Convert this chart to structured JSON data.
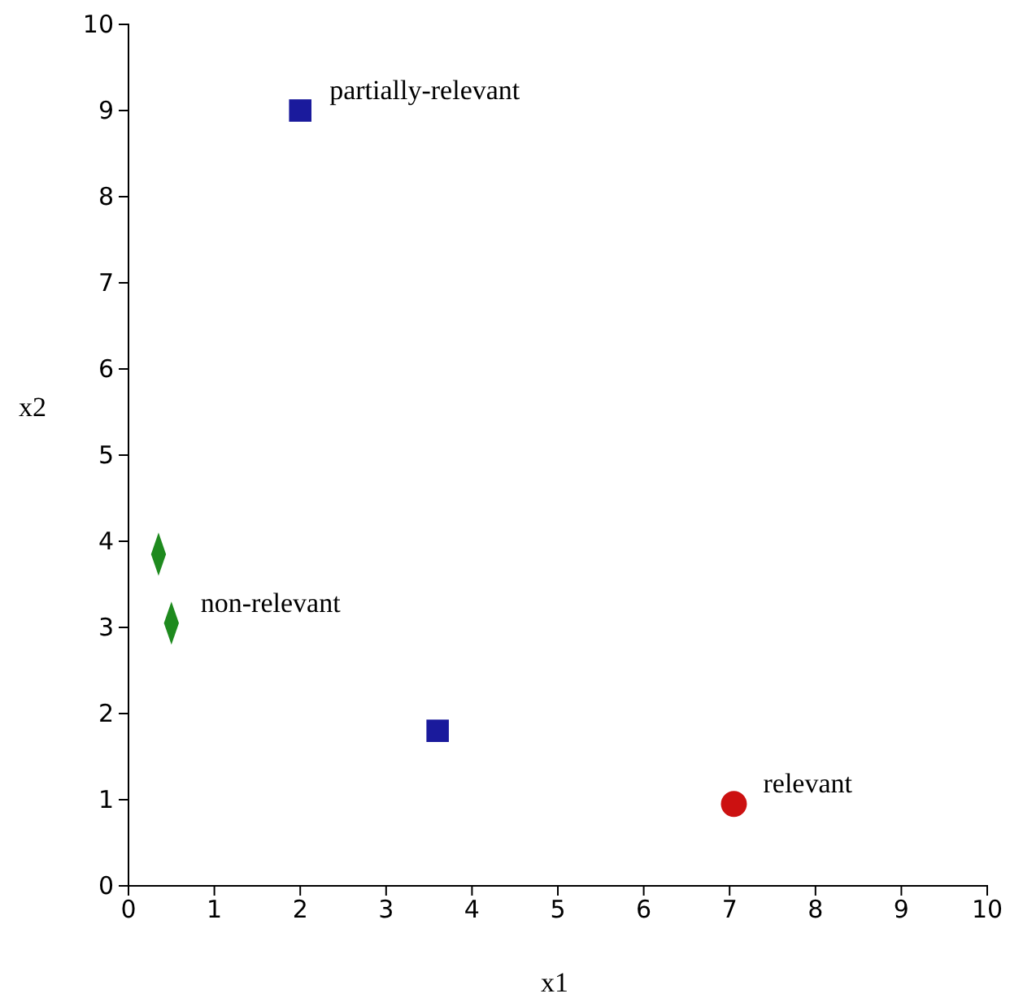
{
  "chart_data": {
    "type": "scatter",
    "xlabel": "x1",
    "ylabel": "x2",
    "xlim": [
      0,
      10
    ],
    "ylim": [
      0,
      10
    ],
    "xticks": [
      0,
      1,
      2,
      3,
      4,
      5,
      6,
      7,
      8,
      9,
      10
    ],
    "yticks": [
      0,
      1,
      2,
      3,
      4,
      5,
      6,
      7,
      8,
      9,
      10
    ],
    "grid": false,
    "series": [
      {
        "name": "partially-relevant",
        "color": "#1a1a9c",
        "marker": "square",
        "x": [
          2,
          3.6
        ],
        "values": [
          9,
          1.8
        ]
      },
      {
        "name": "non-relevant",
        "color": "#1e8a1e",
        "marker": "diamond",
        "x": [
          0.5,
          0.35
        ],
        "values": [
          3.05,
          3.85
        ]
      },
      {
        "name": "relevant",
        "color": "#cc1111",
        "marker": "circle",
        "x": [
          7.05
        ],
        "values": [
          0.95
        ]
      }
    ]
  }
}
